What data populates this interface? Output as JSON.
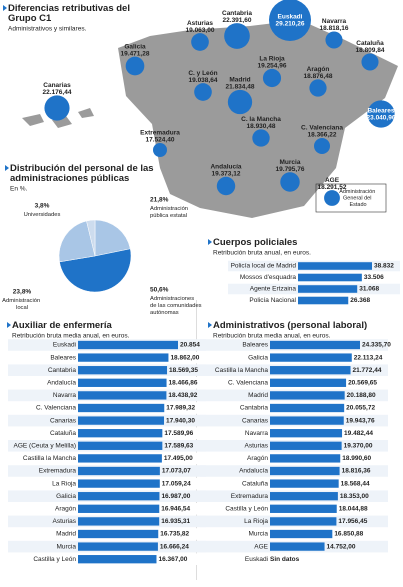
{
  "chart_data": [
    {
      "type": "bubble-map",
      "title": "Diferencias retributivas del Grupo C1",
      "subtitle": "Administrativos y similares.",
      "categories": [
        "Galicia",
        "Asturias",
        "Cantabria",
        "Euskadi",
        "Navarra",
        "Cataluña",
        "La Rioja",
        "C. y León",
        "Madrid",
        "Aragón",
        "Canarias",
        "Extremadura",
        "C. la Mancha",
        "C. Valenciana",
        "Baleares",
        "Andalucía",
        "Murcia",
        "AGE"
      ],
      "values": [
        19471.28,
        19063.0,
        22391.6,
        29210.26,
        18818.16,
        18809.84,
        19254.96,
        19038.64,
        21834.48,
        18876.48,
        22176.44,
        17524.4,
        18930.48,
        18366.22,
        23040.96,
        19373.12,
        19795.76,
        18291.52
      ],
      "value_labels": [
        "19.471,28",
        "19.063,00",
        "22.391,60",
        "29.210,26",
        "18.818,16",
        "18.809,84",
        "19.254,96",
        "19.038,64",
        "21.834,48",
        "18.876,48",
        "22.176,44",
        "17.524,40",
        "18.930,48",
        "18.366,22",
        "23.040,96",
        "19.373,12",
        "19.795,76",
        "18.291,52"
      ],
      "annotation": "Administración General del Estado",
      "color": "#1f73c8"
    },
    {
      "type": "pie",
      "title": "Distribución del personal de las administraciones públicas",
      "subtitle": "En %.",
      "categories": [
        "Administración pública estatal",
        "Administraciones de las comunidades autónomas",
        "Administración local",
        "Universidades"
      ],
      "values": [
        21.8,
        50.6,
        23.8,
        3.8
      ],
      "value_labels": [
        "21,8%",
        "50,6%",
        "23,8%",
        "3,8%"
      ],
      "colors": [
        "#a9c6e6",
        "#1f73c8",
        "#a9c6e6",
        "#cddcee"
      ]
    },
    {
      "type": "hbar",
      "title": "Cuerpos policiales",
      "subtitle": "Retribución bruta anual, en euros.",
      "categories": [
        "Policía local de Madrid",
        "Mossos d'esquadra",
        "Agente Ertzaina",
        "Policía Nacional"
      ],
      "values": [
        38832,
        33506,
        31068,
        26368
      ],
      "value_labels": [
        "38.832",
        "33.506",
        "31.068",
        "26.368"
      ],
      "color": "#1f73c8"
    },
    {
      "type": "hbar",
      "title": "Auxiliar de enfermería",
      "subtitle": "Retribución bruta media anual, en euros.",
      "categories": [
        "Euskadi",
        "Baleares",
        "Cantabria",
        "Andalucía",
        "Navarra",
        "C. Valenciana",
        "Canarias",
        "Cataluña",
        "AGE (Ceuta y Melilla)",
        "Castilla la Mancha",
        "Extremadura",
        "La Rioja",
        "Galicia",
        "Aragón",
        "Asturias",
        "Madrid",
        "Murcia",
        "Castilla y León"
      ],
      "values": [
        20854.96,
        18862.0,
        18569.35,
        18466.86,
        18438.92,
        17989.32,
        17940.3,
        17589.96,
        17589.63,
        17495.0,
        17073.07,
        17059.24,
        16987.0,
        16946.54,
        16935.31,
        16735.82,
        16666.24,
        16367.0
      ],
      "value_labels": [
        "20.854,96",
        "18.862,00",
        "18.569,35",
        "18.466,86",
        "18.438,92",
        "17.989,32",
        "17.940,30",
        "17.589,96",
        "17.589,63",
        "17.495,00",
        "17.073,07",
        "17.059,24",
        "16.987,00",
        "16.946,54",
        "16.935,31",
        "16.735,82",
        "16.666,24",
        "16.367,00"
      ],
      "color": "#1f73c8"
    },
    {
      "type": "hbar",
      "title": "Administrativos (personal laboral)",
      "subtitle": "Retribución bruta media anual, en euros.",
      "categories": [
        "Baleares",
        "Galicia",
        "Castilla la Mancha",
        "C. Valenciana",
        "Madrid",
        "Cantabria",
        "Canarias",
        "Navarra",
        "Asturias",
        "Aragón",
        "Andalucía",
        "Cataluña",
        "Extremadura",
        "Castilla y León",
        "La Rioja",
        "Murcia",
        "AGE",
        "Euskadi"
      ],
      "values": [
        24335.7,
        22113.24,
        21772.44,
        20569.65,
        20188.8,
        20055.72,
        19943.76,
        19482.44,
        19370.0,
        18990.6,
        18816.36,
        18568.44,
        18353.0,
        18044.88,
        17956.45,
        16850.88,
        14752.0,
        null
      ],
      "value_labels": [
        "24.335,70",
        "22.113,24",
        "21.772,44",
        "20.569,65",
        "20.188,80",
        "20.055,72",
        "19.943,76",
        "19.482,44",
        "19.370,00",
        "18.990,60",
        "18.816,36",
        "18.568,44",
        "18.353,00",
        "18.044,88",
        "17.956,45",
        "16.850,88",
        "14.752,00",
        "Sin datos"
      ],
      "color": "#1f73c8"
    }
  ]
}
